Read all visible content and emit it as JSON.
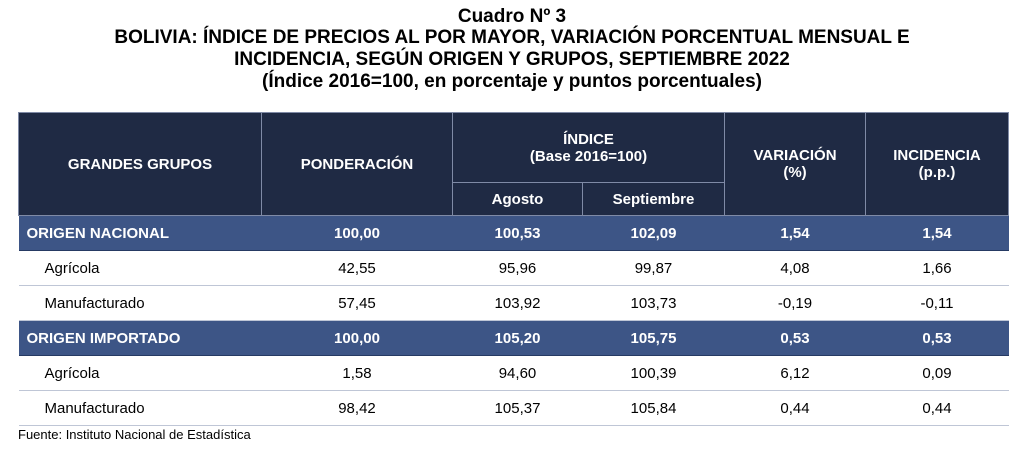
{
  "title": {
    "line1": "Cuadro Nº 3",
    "line2": "BOLIVIA: ÍNDICE DE PRECIOS AL POR MAYOR, VARIACIÓN PORCENTUAL MENSUAL E",
    "line3": "INCIDENCIA, SEGÚN ORIGEN Y GRUPOS, SEPTIEMBRE 2022",
    "line4": "(Índice 2016=100, en porcentaje y puntos porcentuales)"
  },
  "headers": {
    "grupos": "GRANDES GRUPOS",
    "ponderacion": "PONDERACIÓN",
    "indice": "ÍNDICE",
    "indice_base": "(Base 2016=100)",
    "agosto": "Agosto",
    "septiembre": "Septiembre",
    "variacion": "VARIACIÓN",
    "variacion_unit": "(%)",
    "incidencia": "INCIDENCIA",
    "incidencia_unit": "(p.p.)"
  },
  "rows": [
    {
      "label": "ORIGEN NACIONAL",
      "ponderacion": "100,00",
      "agosto": "100,53",
      "septiembre": "102,09",
      "variacion": "1,54",
      "incidencia": "1,54"
    },
    {
      "label": "Agrícola",
      "ponderacion": "42,55",
      "agosto": "95,96",
      "septiembre": "99,87",
      "variacion": "4,08",
      "incidencia": "1,66"
    },
    {
      "label": "Manufacturado",
      "ponderacion": "57,45",
      "agosto": "103,92",
      "septiembre": "103,73",
      "variacion": "-0,19",
      "incidencia": "-0,11"
    },
    {
      "label": "ORIGEN IMPORTADO",
      "ponderacion": "100,00",
      "agosto": "105,20",
      "septiembre": "105,75",
      "variacion": "0,53",
      "incidencia": "0,53"
    },
    {
      "label": "Agrícola",
      "ponderacion": "1,58",
      "agosto": "94,60",
      "septiembre": "100,39",
      "variacion": "6,12",
      "incidencia": "0,09"
    },
    {
      "label": "Manufacturado",
      "ponderacion": "98,42",
      "agosto": "105,37",
      "septiembre": "105,84",
      "variacion": "0,44",
      "incidencia": "0,44"
    }
  ],
  "source": "Fuente: Instituto Nacional de Estadística",
  "colors": {
    "header_bg": "#1f2a44",
    "group_row_bg": "#3d5586"
  }
}
